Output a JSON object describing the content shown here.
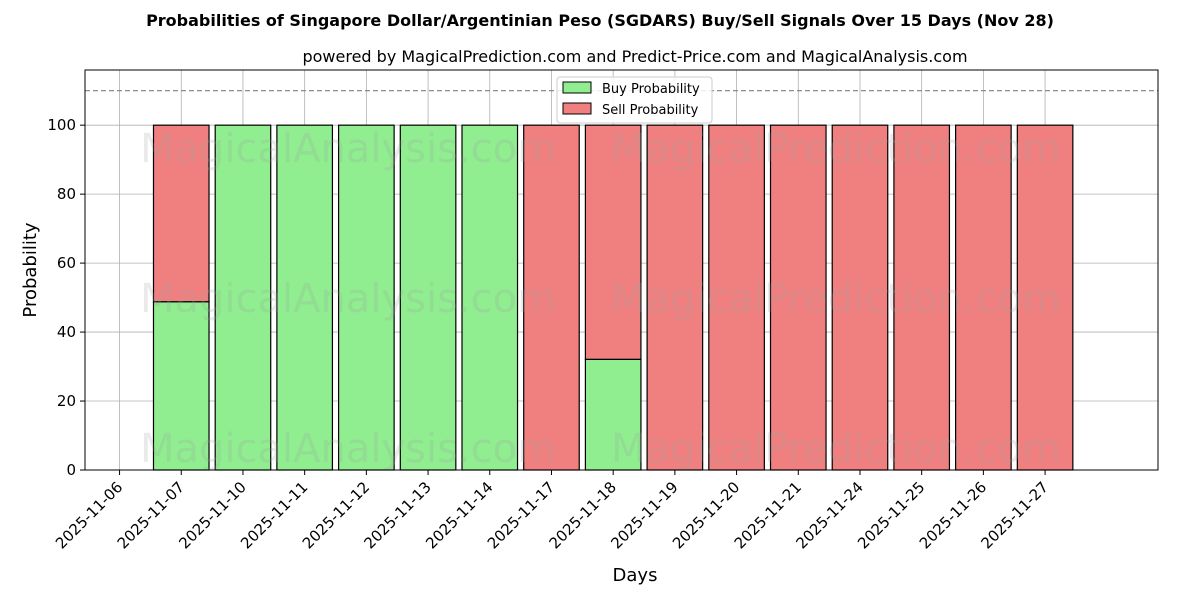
{
  "chart_data": {
    "type": "bar",
    "stacked": true,
    "title": "Probabilities of Singapore Dollar/Argentinian Peso (SGDARS) Buy/Sell Signals Over 15 Days (Nov 28)",
    "subtitle": "powered by MagicalPrediction.com and Predict-Price.com and MagicalAnalysis.com",
    "xlabel": "Days",
    "ylabel": "Probability",
    "ylim": [
      0,
      116
    ],
    "yticks": [
      0,
      20,
      40,
      60,
      80,
      100
    ],
    "x_tick_labels": [
      "2025-11-06",
      "2025-11-07",
      "2025-11-10",
      "2025-11-11",
      "2025-11-12",
      "2025-11-13",
      "2025-11-14",
      "2025-11-17",
      "2025-11-18",
      "2025-11-19",
      "2025-11-20",
      "2025-11-21",
      "2025-11-24",
      "2025-11-25",
      "2025-11-26",
      "2025-11-27"
    ],
    "categories": [
      "2025-11-07",
      "2025-11-10",
      "2025-11-11",
      "2025-11-12",
      "2025-11-13",
      "2025-11-14",
      "2025-11-17",
      "2025-11-18",
      "2025-11-19",
      "2025-11-20",
      "2025-11-21",
      "2025-11-24",
      "2025-11-25",
      "2025-11-26",
      "2025-11-27"
    ],
    "series": [
      {
        "name": "Buy Probability",
        "color": "#90ee90",
        "values": [
          48.8,
          100,
          100,
          100,
          100,
          100,
          0,
          32.1,
          0,
          0,
          0,
          0,
          0,
          0,
          0
        ]
      },
      {
        "name": "Sell Probability",
        "color": "#f08080",
        "values": [
          51.2,
          0,
          0,
          0,
          0,
          0,
          100,
          67.9,
          100,
          100,
          100,
          100,
          100,
          100,
          100
        ]
      }
    ],
    "reference_line": {
      "value": 110,
      "style": "dashed"
    },
    "grid": true,
    "legend_position": "top-center",
    "watermarks": [
      "MagicalAnalysis.com",
      "MagicalPrediction.com"
    ]
  }
}
